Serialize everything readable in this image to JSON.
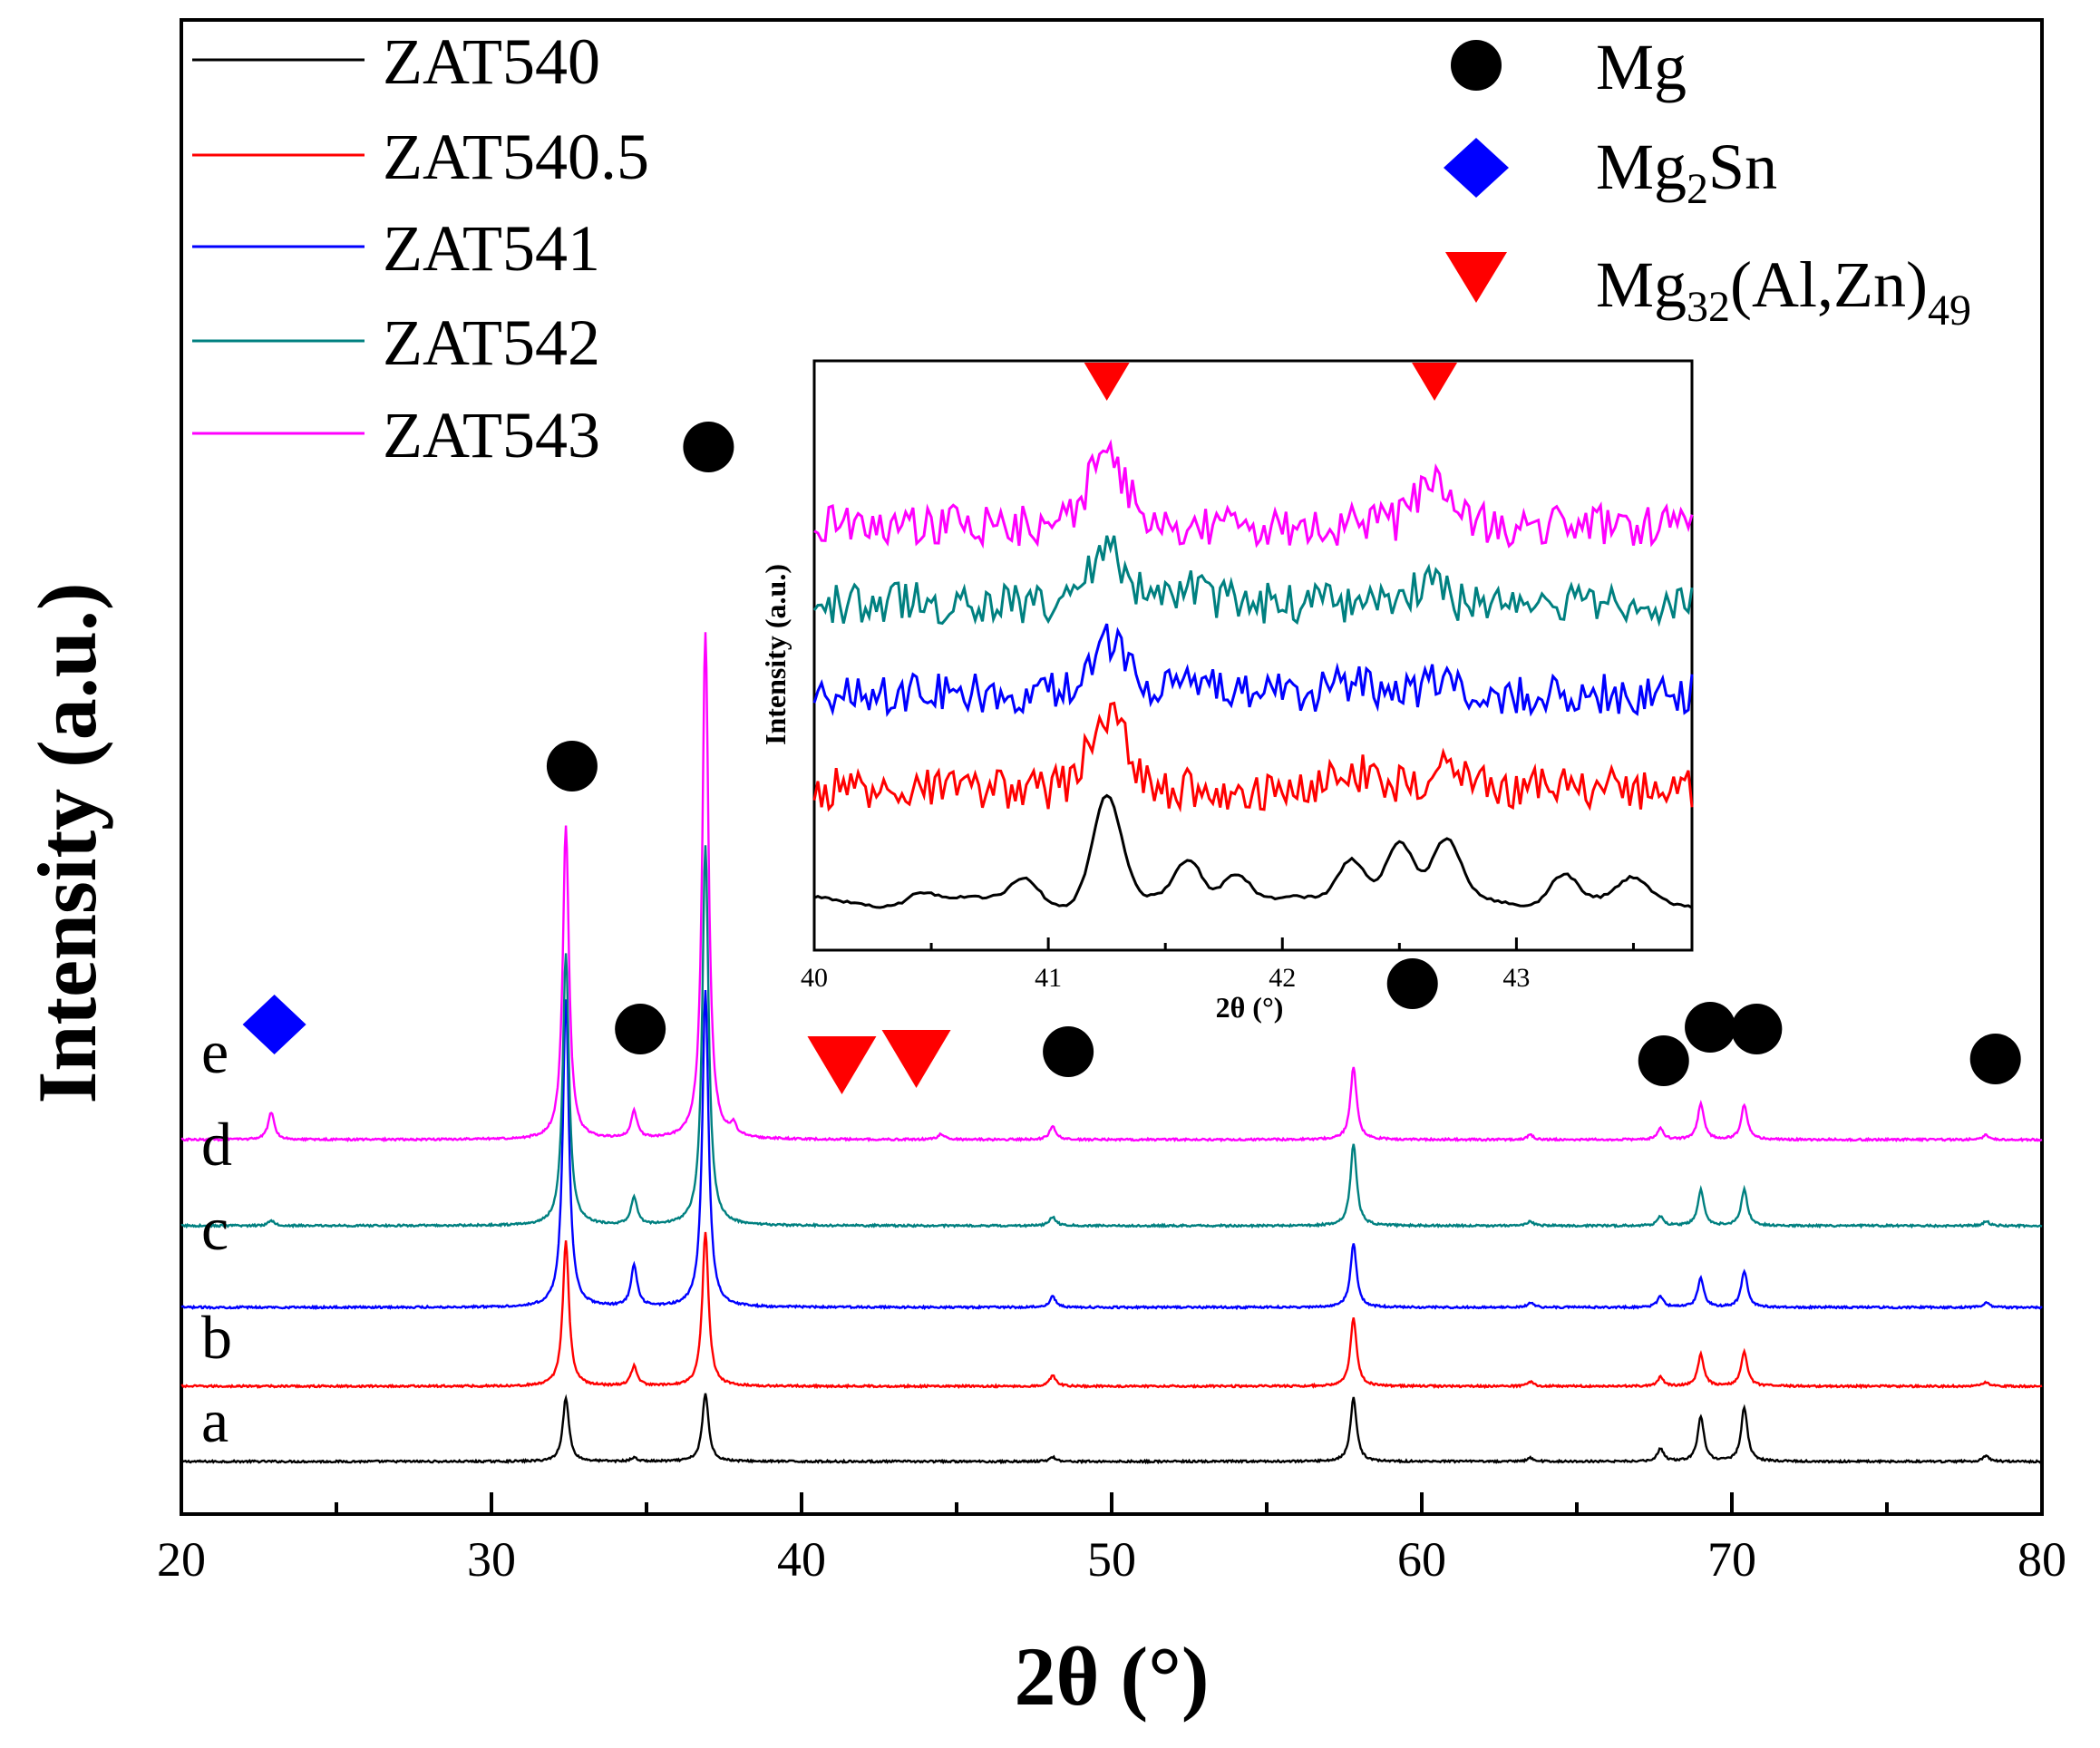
{
  "chart_data": [
    {
      "name": "main",
      "type": "line",
      "title": "",
      "xlabel": "2θ (°)",
      "ylabel": "Intensity (a.u.)",
      "xlim": [
        20,
        80
      ],
      "xticks": [
        "20",
        "30",
        "40",
        "50",
        "60",
        "70",
        "80"
      ],
      "yticks": false,
      "series": [
        {
          "name": "ZAT540",
          "label": "a",
          "color": "#000000",
          "baseline": 0,
          "peaks": [
            [
              32.4,
              70
            ],
            [
              34.6,
              4
            ],
            [
              36.9,
              75
            ],
            [
              48.1,
              5
            ],
            [
              57.8,
              70
            ],
            [
              63.5,
              4
            ],
            [
              67.7,
              14
            ],
            [
              69.0,
              50
            ],
            [
              70.4,
              60
            ],
            [
              78.2,
              6
            ]
          ]
        },
        {
          "name": "ZAT540.5",
          "label": "b",
          "color": "#ff0000",
          "baseline": 83,
          "peaks": [
            [
              32.4,
              160
            ],
            [
              34.6,
              22
            ],
            [
              36.9,
              170
            ],
            [
              48.1,
              12
            ],
            [
              57.8,
              75
            ],
            [
              63.5,
              5
            ],
            [
              67.7,
              10
            ],
            [
              69.0,
              35
            ],
            [
              70.4,
              38
            ],
            [
              78.2,
              4
            ]
          ]
        },
        {
          "name": "ZAT541",
          "label": "c",
          "color": "#0000ff",
          "baseline": 170,
          "peaks": [
            [
              32.4,
              340
            ],
            [
              34.6,
              45
            ],
            [
              36.9,
              350
            ],
            [
              48.1,
              12
            ],
            [
              57.8,
              70
            ],
            [
              63.5,
              5
            ],
            [
              67.7,
              12
            ],
            [
              69.0,
              32
            ],
            [
              70.4,
              40
            ],
            [
              78.2,
              5
            ]
          ]
        },
        {
          "name": "ZAT542",
          "label": "d",
          "color": "#008080",
          "baseline": 260,
          "peaks": [
            [
              22.9,
              6
            ],
            [
              32.4,
              300
            ],
            [
              34.6,
              30
            ],
            [
              36.9,
              420
            ],
            [
              48.1,
              10
            ],
            [
              57.8,
              90
            ],
            [
              63.5,
              5
            ],
            [
              67.7,
              10
            ],
            [
              69.0,
              40
            ],
            [
              70.4,
              40
            ],
            [
              78.2,
              5
            ]
          ]
        },
        {
          "name": "ZAT543",
          "label": "e",
          "color": "#ff00ff",
          "baseline": 355,
          "peaks": [
            [
              22.9,
              30
            ],
            [
              32.4,
              345
            ],
            [
              34.6,
              30
            ],
            [
              36.9,
              560
            ],
            [
              37.8,
              12
            ],
            [
              44.5,
              6
            ],
            [
              48.1,
              15
            ],
            [
              57.8,
              80
            ],
            [
              63.5,
              5
            ],
            [
              67.7,
              12
            ],
            [
              69.0,
              40
            ],
            [
              70.4,
              38
            ],
            [
              78.2,
              5
            ]
          ]
        }
      ],
      "phase_markers": [
        {
          "phase": "Mg",
          "positions_2theta": [
            32.6,
            34.8,
            37.0,
            48.6,
            59.7,
            67.8,
            69.3,
            70.8,
            78.5
          ]
        },
        {
          "phase": "Mg2Sn",
          "positions_2theta": [
            23.0
          ]
        },
        {
          "phase": "Mg32(Al,Zn)49",
          "positions_2theta": [
            41.3,
            43.7
          ]
        }
      ]
    },
    {
      "name": "inset",
      "type": "line",
      "xlabel": "2θ (°)",
      "ylabel": "Intensity (a.u.)",
      "xlim": [
        40,
        43.75
      ],
      "xticks": [
        "40",
        "41",
        "42",
        "43"
      ],
      "yticks": false,
      "series": [
        {
          "name": "ZAT540",
          "color": "#000000",
          "baseline": 0,
          "peaks": [
            [
              40.45,
              12
            ],
            [
              40.9,
              30
            ],
            [
              41.25,
              115
            ],
            [
              41.6,
              50
            ],
            [
              41.8,
              35
            ],
            [
              42.3,
              50
            ],
            [
              42.5,
              70
            ],
            [
              42.7,
              65
            ],
            [
              43.2,
              35
            ],
            [
              43.5,
              22
            ]
          ]
        },
        {
          "name": "ZAT540.5",
          "color": "#ff0000",
          "baseline": 125,
          "peaks": [
            [
              41.25,
              80
            ],
            [
              42.3,
              20
            ],
            [
              42.7,
              25
            ]
          ]
        },
        {
          "name": "ZAT541",
          "color": "#0000ff",
          "baseline": 230,
          "peaks": [
            [
              41.25,
              55
            ],
            [
              41.6,
              15
            ],
            [
              42.3,
              15
            ],
            [
              42.7,
              15
            ]
          ]
        },
        {
          "name": "ZAT542",
          "color": "#008080",
          "baseline": 330,
          "peaks": [
            [
              41.25,
              60
            ],
            [
              41.6,
              15
            ],
            [
              42.6,
              20
            ]
          ]
        },
        {
          "name": "ZAT543",
          "color": "#ff00ff",
          "baseline": 415,
          "peaks": [
            [
              41.25,
              75
            ],
            [
              42.65,
              55
            ]
          ]
        }
      ],
      "phase_markers": [
        {
          "phase": "Mg32(Al,Zn)49",
          "positions_2theta": [
            41.25,
            42.65
          ]
        }
      ]
    }
  ],
  "legend": {
    "samples": [
      "ZAT540",
      "ZAT540.5",
      "ZAT541",
      "ZAT542",
      "ZAT543"
    ],
    "sample_colors": [
      "#000000",
      "#ff0000",
      "#0000ff",
      "#008080",
      "#ff00ff"
    ],
    "phases": [
      {
        "base": "Mg",
        "sub": "",
        "rest": "",
        "sub2": "",
        "symbol": "circle",
        "color": "#000000"
      },
      {
        "base": "Mg",
        "sub": "2",
        "rest": "Sn",
        "sub2": "",
        "symbol": "diamond",
        "color": "#0000ff"
      },
      {
        "base": "Mg",
        "sub": "32",
        "rest": "(Al,Zn)",
        "sub2": "49",
        "symbol": "triangle-down",
        "color": "#ff0000"
      }
    ]
  },
  "curve_letters": [
    "a",
    "b",
    "c",
    "d",
    "e"
  ]
}
